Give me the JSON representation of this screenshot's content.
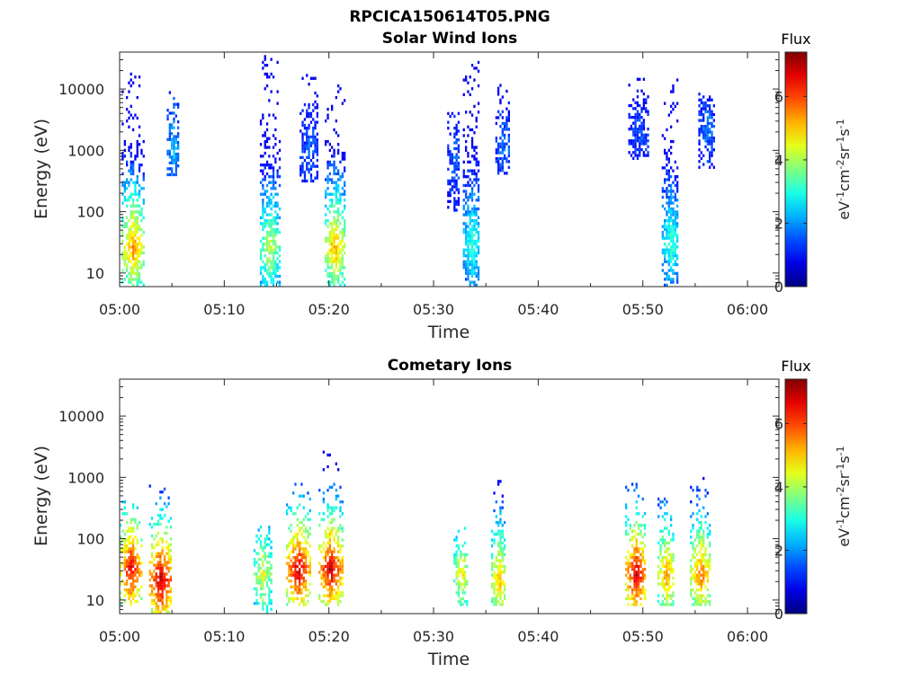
{
  "figure_title": "RPCICA150614T05.PNG",
  "colors": {
    "scatter_points": "heat-colored by flux",
    "axis": "#262626",
    "background": "#ffffff"
  },
  "chart_data": [
    {
      "type": "heatmap",
      "title": "Solar Wind Ions",
      "xlabel": "Time",
      "ylabel": "Energy (eV)",
      "x_ticks": [
        "05:00",
        "05:10",
        "05:20",
        "05:30",
        "05:40",
        "05:50",
        "06:00"
      ],
      "y_ticks": [
        "10",
        "100",
        "1000",
        "10000"
      ],
      "xlim": [
        "05:00",
        "06:03"
      ],
      "ylim": [
        6,
        40000
      ],
      "yscale": "log",
      "colorbar": {
        "label": "Flux",
        "units": "eV-1cm-2sr-1s-1",
        "range": [
          0,
          7.4
        ],
        "ticks": [
          "0",
          "2",
          "4",
          "6"
        ],
        "colormap": "jet"
      },
      "bursts": [
        {
          "time_min": 0.2,
          "width_min": 2.0,
          "e_min": 6,
          "e_max": 17000,
          "peak_energy": 25,
          "peak_flux": 5.6
        },
        {
          "time_min": 4.5,
          "width_min": 1.1,
          "e_min": 380,
          "e_max": 10000,
          "peak_energy": 1000,
          "peak_flux": 2.4
        },
        {
          "time_min": 13.4,
          "width_min": 1.8,
          "e_min": 6,
          "e_max": 35000,
          "peak_energy": 25,
          "peak_flux": 4.3
        },
        {
          "time_min": 17.2,
          "width_min": 1.7,
          "e_min": 300,
          "e_max": 16000,
          "peak_energy": 1000,
          "peak_flux": 1.6
        },
        {
          "time_min": 19.6,
          "width_min": 1.8,
          "e_min": 6,
          "e_max": 14000,
          "peak_energy": 25,
          "peak_flux": 5.4
        },
        {
          "time_min": 31.3,
          "width_min": 1.2,
          "e_min": 100,
          "e_max": 4000,
          "peak_energy": 600,
          "peak_flux": 1.7
        },
        {
          "time_min": 32.8,
          "width_min": 1.6,
          "e_min": 6,
          "e_max": 28000,
          "peak_energy": 30,
          "peak_flux": 3.2
        },
        {
          "time_min": 35.9,
          "width_min": 1.4,
          "e_min": 400,
          "e_max": 11000,
          "peak_energy": 1000,
          "peak_flux": 1.8
        },
        {
          "time_min": 48.6,
          "width_min": 2.0,
          "e_min": 700,
          "e_max": 16000,
          "peak_energy": 1500,
          "peak_flux": 1.5
        },
        {
          "time_min": 51.8,
          "width_min": 1.6,
          "e_min": 6,
          "e_max": 14000,
          "peak_energy": 30,
          "peak_flux": 3.3
        },
        {
          "time_min": 55.3,
          "width_min": 1.6,
          "e_min": 500,
          "e_max": 8000,
          "peak_energy": 2000,
          "peak_flux": 1.8
        }
      ]
    },
    {
      "type": "heatmap",
      "title": "Cometary Ions",
      "xlabel": "Time",
      "ylabel": "Energy (eV)",
      "x_ticks": [
        "05:00",
        "05:10",
        "05:20",
        "05:30",
        "05:40",
        "05:50",
        "06:00"
      ],
      "y_ticks": [
        "10",
        "100",
        "1000",
        "10000"
      ],
      "xlim": [
        "05:00",
        "06:03"
      ],
      "ylim": [
        6,
        40000
      ],
      "yscale": "log",
      "colorbar": {
        "label": "Flux",
        "units": "eV-1cm-2sr-1s-1",
        "range": [
          0,
          7.4
        ],
        "ticks": [
          "0",
          "2",
          "4",
          "6"
        ],
        "colormap": "jet"
      },
      "bursts": [
        {
          "time_min": 0.0,
          "width_min": 2.0,
          "e_min": 8,
          "e_max": 400,
          "peak_energy": 30,
          "peak_flux": 6.8
        },
        {
          "time_min": 2.8,
          "width_min": 2.2,
          "e_min": 6,
          "e_max": 1000,
          "peak_energy": 20,
          "peak_flux": 7.2
        },
        {
          "time_min": 12.8,
          "width_min": 1.6,
          "e_min": 6,
          "e_max": 150,
          "peak_energy": 25,
          "peak_flux": 4.6
        },
        {
          "time_min": 15.9,
          "width_min": 2.2,
          "e_min": 8,
          "e_max": 800,
          "peak_energy": 30,
          "peak_flux": 7.0
        },
        {
          "time_min": 19.0,
          "width_min": 2.2,
          "e_min": 8,
          "e_max": 2500,
          "peak_energy": 30,
          "peak_flux": 7.0
        },
        {
          "time_min": 31.9,
          "width_min": 1.4,
          "e_min": 8,
          "e_max": 150,
          "peak_energy": 25,
          "peak_flux": 4.8
        },
        {
          "time_min": 35.5,
          "width_min": 1.4,
          "e_min": 8,
          "e_max": 900,
          "peak_energy": 20,
          "peak_flux": 5.4
        },
        {
          "time_min": 48.3,
          "width_min": 2.0,
          "e_min": 8,
          "e_max": 800,
          "peak_energy": 25,
          "peak_flux": 7.0
        },
        {
          "time_min": 51.4,
          "width_min": 1.6,
          "e_min": 8,
          "e_max": 500,
          "peak_energy": 25,
          "peak_flux": 5.5
        },
        {
          "time_min": 54.5,
          "width_min": 2.0,
          "e_min": 8,
          "e_max": 1000,
          "peak_energy": 25,
          "peak_flux": 5.8
        }
      ]
    }
  ]
}
